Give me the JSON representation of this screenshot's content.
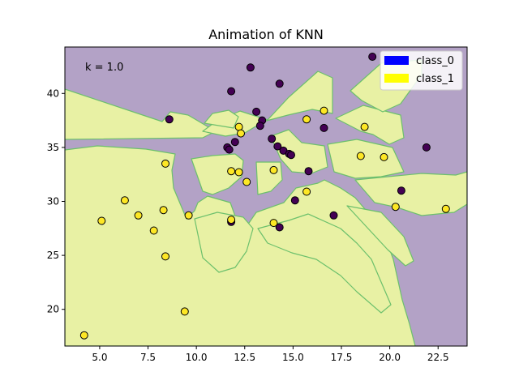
{
  "chart_data": {
    "type": "scatter",
    "title": "Animation of KNN",
    "annotation": "k = 1.0",
    "xlabel": "",
    "ylabel": "",
    "xlim": [
      3.2,
      24.0
    ],
    "ylim": [
      16.6,
      44.3
    ],
    "x_ticks": [
      5.0,
      7.5,
      10.0,
      12.5,
      15.0,
      17.5,
      20.0,
      22.5
    ],
    "x_tick_labels": [
      "5.0",
      "7.5",
      "10.0",
      "12.5",
      "15.0",
      "17.5",
      "20.0",
      "22.5"
    ],
    "y_ticks": [
      20,
      25,
      30,
      35,
      40
    ],
    "y_tick_labels": [
      "20",
      "25",
      "30",
      "35",
      "40"
    ],
    "legend_position": "top-right",
    "region_colors": {
      "class_0": "#b3a2c6",
      "class_1": "#e8f1a4",
      "boundary": "#6cc06c"
    },
    "series": [
      {
        "name": "class_0",
        "legend_color": "#0000ff",
        "point_color": "#440154",
        "points": [
          [
            19.1,
            43.4
          ],
          [
            12.8,
            42.4
          ],
          [
            14.3,
            40.9
          ],
          [
            11.8,
            40.2
          ],
          [
            13.1,
            38.3
          ],
          [
            8.6,
            37.6
          ],
          [
            13.4,
            37.5
          ],
          [
            13.3,
            37.0
          ],
          [
            16.6,
            36.8
          ],
          [
            13.9,
            35.8
          ],
          [
            12.0,
            35.5
          ],
          [
            14.2,
            35.1
          ],
          [
            11.6,
            35.0
          ],
          [
            11.7,
            34.8
          ],
          [
            14.5,
            34.7
          ],
          [
            14.8,
            34.4
          ],
          [
            14.9,
            34.3
          ],
          [
            21.9,
            35.0
          ],
          [
            15.8,
            32.8
          ],
          [
            20.6,
            31.0
          ],
          [
            15.1,
            30.1
          ],
          [
            17.1,
            28.7
          ],
          [
            11.8,
            28.1
          ],
          [
            14.3,
            27.6
          ]
        ]
      },
      {
        "name": "class_1",
        "legend_color": "#ffff00",
        "point_color": "#fde725",
        "points": [
          [
            16.6,
            38.4
          ],
          [
            15.7,
            37.6
          ],
          [
            12.2,
            36.9
          ],
          [
            18.7,
            36.9
          ],
          [
            12.3,
            36.3
          ],
          [
            18.5,
            34.2
          ],
          [
            19.7,
            34.1
          ],
          [
            8.4,
            33.5
          ],
          [
            11.8,
            32.8
          ],
          [
            12.2,
            32.7
          ],
          [
            14.0,
            32.9
          ],
          [
            12.6,
            31.8
          ],
          [
            15.7,
            30.9
          ],
          [
            6.3,
            30.1
          ],
          [
            20.3,
            29.5
          ],
          [
            22.9,
            29.3
          ],
          [
            8.3,
            29.2
          ],
          [
            7.0,
            28.7
          ],
          [
            9.6,
            28.7
          ],
          [
            5.1,
            28.2
          ],
          [
            11.8,
            28.3
          ],
          [
            14.0,
            28.0
          ],
          [
            7.8,
            27.3
          ],
          [
            8.4,
            24.9
          ],
          [
            9.4,
            19.8
          ],
          [
            4.2,
            17.6
          ]
        ]
      }
    ]
  }
}
